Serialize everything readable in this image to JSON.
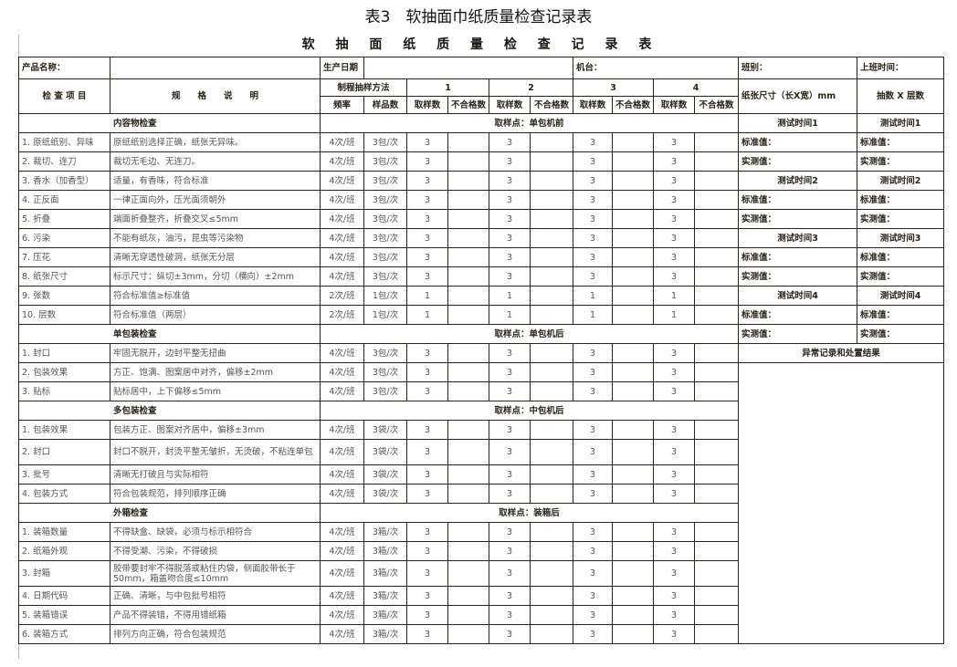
{
  "caption": "表3　软抽面巾纸质量检查记录表",
  "table_title": "软 抽 面 纸 质 量 检 查 记 录 表",
  "header": {
    "product_name": "产品名称：",
    "production_date": "生产日期",
    "machine": "机台：",
    "shift": "班别：",
    "shift_time": "上班时间：",
    "check_item": "检 查 项 目",
    "spec": "规　　格　　说　　明",
    "sampling_method": "制程抽样方法",
    "groups": [
      "1",
      "2",
      "3",
      "4"
    ],
    "frequency": "频率",
    "sample_qty": "样品数",
    "taken": "取样数",
    "failed": "不合格数",
    "paper_size": "纸张尺寸（长X宽）mm",
    "sheets_layers": "抽数 X 层数"
  },
  "sections": [
    {
      "title": "内容物检查",
      "point": "取样点：单包机前",
      "items": [
        {
          "name": "1. 原纸纸别、异味",
          "spec": "原纸纸别选择正确，纸张无异味。",
          "freq": "4次/班",
          "sample": "3包/次",
          "take": "3"
        },
        {
          "name": "2. 裁切、连刀",
          "spec": "裁切无毛边、无连刀。",
          "freq": "4次/班",
          "sample": "3包/次",
          "take": "3"
        },
        {
          "name": "3. 香水（加香型）",
          "spec": "适量，有香味，符合标准",
          "freq": "4次/班",
          "sample": "3包/次",
          "take": "3"
        },
        {
          "name": "4. 正反面",
          "spec": "一律正面向外，压光面须朝外",
          "freq": "4次/班",
          "sample": "3包/次",
          "take": "3"
        },
        {
          "name": "5. 折叠",
          "spec": "端面折叠整齐，折叠交叉≤5mm",
          "freq": "4次/班",
          "sample": "3包/次",
          "take": "3"
        },
        {
          "name": "6. 污染",
          "spec": "不能有纸灰，油污，昆虫等污染物",
          "freq": "4次/班",
          "sample": "3包/次",
          "take": "3"
        },
        {
          "name": "7. 压花",
          "spec": "清晰无穿透性破洞，纸张无分层",
          "freq": "4次/班",
          "sample": "3包/次",
          "take": "3"
        },
        {
          "name": "8. 纸张尺寸",
          "spec": "标示尺寸：纵切±3mm，分切（横向）±2mm",
          "freq": "4次/班",
          "sample": "3包/次",
          "take": "3"
        },
        {
          "name": "9. 张数",
          "spec": "符合标准值≥标准值",
          "freq": "2次/班",
          "sample": "1包/次",
          "take": "1"
        },
        {
          "name": "10. 层数",
          "spec": "符合标准值（两层）",
          "freq": "2次/班",
          "sample": "1包/次",
          "take": "1"
        }
      ]
    },
    {
      "title": "单包装检查",
      "point": "取样点：单包机后",
      "items": [
        {
          "name": "1. 封口",
          "spec": "牢固无脱开，边封平整无扭曲",
          "freq": "4次/班",
          "sample": "3包/次",
          "take": "3"
        },
        {
          "name": "2. 包装效果",
          "spec": "方正、饱满、图案居中对齐，偏移±2mm",
          "freq": "4次/班",
          "sample": "3包/次",
          "take": "3"
        },
        {
          "name": "3. 贴标",
          "spec": "贴标居中，上下偏移≤5mm",
          "freq": "4次/班",
          "sample": "3包/次",
          "take": "3"
        }
      ]
    },
    {
      "title": "多包装检查",
      "point": "取样点：中包机后",
      "items": [
        {
          "name": "1. 包装效果",
          "spec": "包装方正、图案对齐居中，偏移±3mm",
          "freq": "4次/班",
          "sample": "3袋/次",
          "take": "3"
        },
        {
          "name": "2. 封口",
          "spec": "封口不脱开，封烫平整无皱折，无烫破，不粘连单包",
          "freq": "4次/班",
          "sample": "3袋/次",
          "take": "3",
          "double": true
        },
        {
          "name": "3. 批号",
          "spec": "清晰无打破且与实际相符",
          "freq": "4次/班",
          "sample": "3袋/次",
          "take": "3"
        },
        {
          "name": "4. 包装方式",
          "spec": "符合包装规范，排列顺序正确",
          "freq": "4次/班",
          "sample": "3袋/次",
          "take": "3"
        }
      ]
    },
    {
      "title": "外箱检查",
      "point": "取样点：装箱后",
      "items": [
        {
          "name": "1. 装箱数量",
          "spec": "不得缺盒、缺袋，必须与标示相符合",
          "freq": "4次/班",
          "sample": "3箱/次",
          "take": "3"
        },
        {
          "name": "2. 纸箱外观",
          "spec": "不得受潮、污染，不得破损",
          "freq": "4次/班",
          "sample": "3箱/次",
          "take": "3"
        },
        {
          "name": "3. 封箱",
          "spec": "胶带要封牢不得脱落或粘住内袋，侧面胶带长于50mm，箱盖吻合度≤10mm",
          "freq": "4次/班",
          "sample": "3箱/次",
          "take": "3",
          "double": true
        },
        {
          "name": "4. 日期代码",
          "spec": "正确、清晰，与中包批号相符",
          "freq": "4次/班",
          "sample": "3箱/次",
          "take": "3"
        },
        {
          "name": "5. 装箱错误",
          "spec": "产品不得装错，不得用错纸箱",
          "freq": "4次/班",
          "sample": "3箱/次",
          "take": "3"
        },
        {
          "name": "6. 装箱方式",
          "spec": "排列方向正确，符合包装规范",
          "freq": "4次/班",
          "sample": "3箱/次",
          "take": "3"
        }
      ]
    }
  ],
  "right_panel": [
    [
      "测试时间1",
      "测试时间1"
    ],
    [
      "标准值：",
      "标准值："
    ],
    [
      "实测值：",
      "实测值："
    ],
    [
      "测试时间2",
      "测试时间2"
    ],
    [
      "标准值：",
      "标准值："
    ],
    [
      "实测值：",
      "实测值："
    ],
    [
      "测试时间3",
      "测试时间3"
    ],
    [
      "标准值：",
      "标准值："
    ],
    [
      "实测值：",
      "实测值："
    ],
    [
      "测试时间4",
      "测试时间4"
    ],
    [
      "标准值：",
      "标准值："
    ],
    [
      "实测值：",
      "实测值："
    ]
  ],
  "abnormal_record": "异常记录和处置结果"
}
